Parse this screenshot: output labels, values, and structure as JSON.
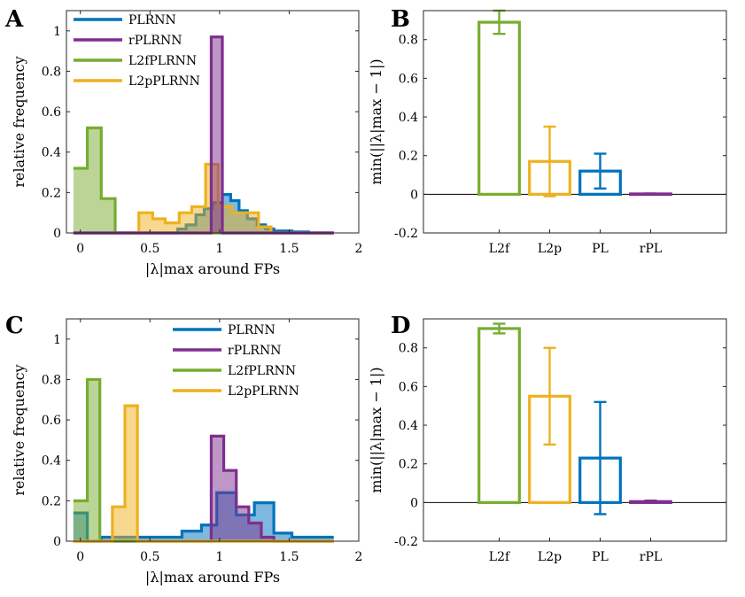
{
  "colors": {
    "PLRNN": "#0072BD",
    "rPLRNN": "#7E2F8E",
    "L2fPLRNN": "#77AC30",
    "L2pPLRNN": "#EDB120"
  },
  "chart_data": [
    {
      "panel": "A",
      "type": "histogram",
      "xlabel": "|λ|max around FPs",
      "ylabel": "relative frequency",
      "xlim": [
        -0.1,
        2
      ],
      "ylim": [
        0,
        1.1
      ],
      "xticks": [
        "0",
        "0.5",
        "1",
        "1.5",
        "2"
      ],
      "yticks": [
        "0",
        "0.2",
        "0.4",
        "0.6",
        "0.8",
        "1"
      ],
      "legend": [
        "PLRNN",
        "rPLRNN",
        "L2fPLRNN",
        "L2pPLRNN"
      ],
      "legend_position": "top-left",
      "series": [
        {
          "name": "PLRNN",
          "key": "PLRNN",
          "edges": [
            -0.05,
            0.7,
            0.76,
            0.83,
            0.89,
            0.95,
            1.02,
            1.08,
            1.14,
            1.2,
            1.27,
            1.33,
            1.39,
            1.45,
            1.52,
            1.58,
            1.64,
            1.82
          ],
          "values": [
            0,
            0.02,
            0.04,
            0.09,
            0.12,
            0.15,
            0.19,
            0.16,
            0.11,
            0.07,
            0.04,
            0.02,
            0.01,
            0.01,
            0.005,
            0.005,
            0
          ]
        },
        {
          "name": "rPLRNN",
          "key": "rPLRNN",
          "edges": [
            -0.05,
            0.94,
            1.02,
            1.82
          ],
          "values": [
            0,
            0.97,
            0
          ]
        },
        {
          "name": "L2fPLRNN",
          "key": "L2fPLRNN",
          "edges": [
            -0.05,
            0.05,
            0.15,
            0.25,
            1.82
          ],
          "values": [
            0.32,
            0.52,
            0.17,
            0
          ]
        },
        {
          "name": "L2pPLRNN",
          "key": "L2pPLRNN",
          "edges": [
            -0.05,
            0.42,
            0.52,
            0.61,
            0.71,
            0.8,
            0.9,
            0.99,
            1.09,
            1.18,
            1.28,
            1.37,
            1.82
          ],
          "values": [
            0,
            0.1,
            0.07,
            0.05,
            0.1,
            0.13,
            0.34,
            0.13,
            0.1,
            0.1,
            0.03,
            0
          ]
        }
      ]
    },
    {
      "panel": "B",
      "type": "bar",
      "ylabel": "min(||λ|max − 1|)",
      "ylim": [
        -0.2,
        0.95
      ],
      "yticks": [
        "-0.2",
        "0",
        "0.2",
        "0.4",
        "0.6",
        "0.8"
      ],
      "categories": [
        "L2f",
        "L2p",
        "PL",
        "rPL"
      ],
      "series_keys": [
        "L2fPLRNN",
        "L2pPLRNN",
        "PLRNN",
        "rPLRNN"
      ],
      "values": [
        0.89,
        0.17,
        0.12,
        0.002
      ],
      "errors": [
        0.06,
        0.18,
        0.09,
        0.002
      ]
    },
    {
      "panel": "C",
      "type": "histogram",
      "xlabel": "|λ|max around FPs",
      "ylabel": "relative frequency",
      "xlim": [
        -0.1,
        2
      ],
      "ylim": [
        0,
        1.1
      ],
      "xticks": [
        "0",
        "0.5",
        "1",
        "1.5",
        "2"
      ],
      "yticks": [
        "0",
        "0.2",
        "0.4",
        "0.6",
        "0.8",
        "1"
      ],
      "legend": [
        "PLRNN",
        "rPLRNN",
        "L2fPLRNN",
        "L2pPLRNN"
      ],
      "legend_position": "top-right",
      "series": [
        {
          "name": "PLRNN",
          "key": "PLRNN",
          "edges": [
            -0.05,
            0.05,
            0.15,
            0.44,
            0.73,
            0.87,
            0.98,
            1.12,
            1.25,
            1.39,
            1.52,
            1.66,
            1.82
          ],
          "values": [
            0.14,
            0,
            0.02,
            0.02,
            0.05,
            0.08,
            0.24,
            0.13,
            0.19,
            0.04,
            0.02,
            0.02
          ]
        },
        {
          "name": "rPLRNN",
          "key": "rPLRNN",
          "edges": [
            -0.05,
            0.94,
            1.03,
            1.12,
            1.21,
            1.3,
            1.39,
            1.82
          ],
          "values": [
            0,
            0.52,
            0.35,
            0.17,
            0.09,
            0.02,
            0
          ]
        },
        {
          "name": "L2fPLRNN",
          "key": "L2fPLRNN",
          "edges": [
            -0.05,
            0.05,
            0.14,
            0.23,
            1.82
          ],
          "values": [
            0.2,
            0.8,
            0,
            0
          ]
        },
        {
          "name": "L2pPLRNN",
          "key": "L2pPLRNN",
          "edges": [
            -0.05,
            0.23,
            0.32,
            0.41,
            1.82
          ],
          "values": [
            0,
            0.17,
            0.67,
            0
          ]
        }
      ]
    },
    {
      "panel": "D",
      "type": "bar",
      "ylabel": "min(||λ|max − 1|)",
      "ylim": [
        -0.2,
        0.95
      ],
      "yticks": [
        "-0.2",
        "0",
        "0.2",
        "0.4",
        "0.6",
        "0.8"
      ],
      "categories": [
        "L2f",
        "L2p",
        "PL",
        "rPL"
      ],
      "series_keys": [
        "L2fPLRNN",
        "L2pPLRNN",
        "PLRNN",
        "rPLRNN"
      ],
      "values": [
        0.9,
        0.55,
        0.23,
        0.005
      ],
      "errors": [
        0.025,
        0.25,
        0.29,
        0.005
      ]
    }
  ]
}
